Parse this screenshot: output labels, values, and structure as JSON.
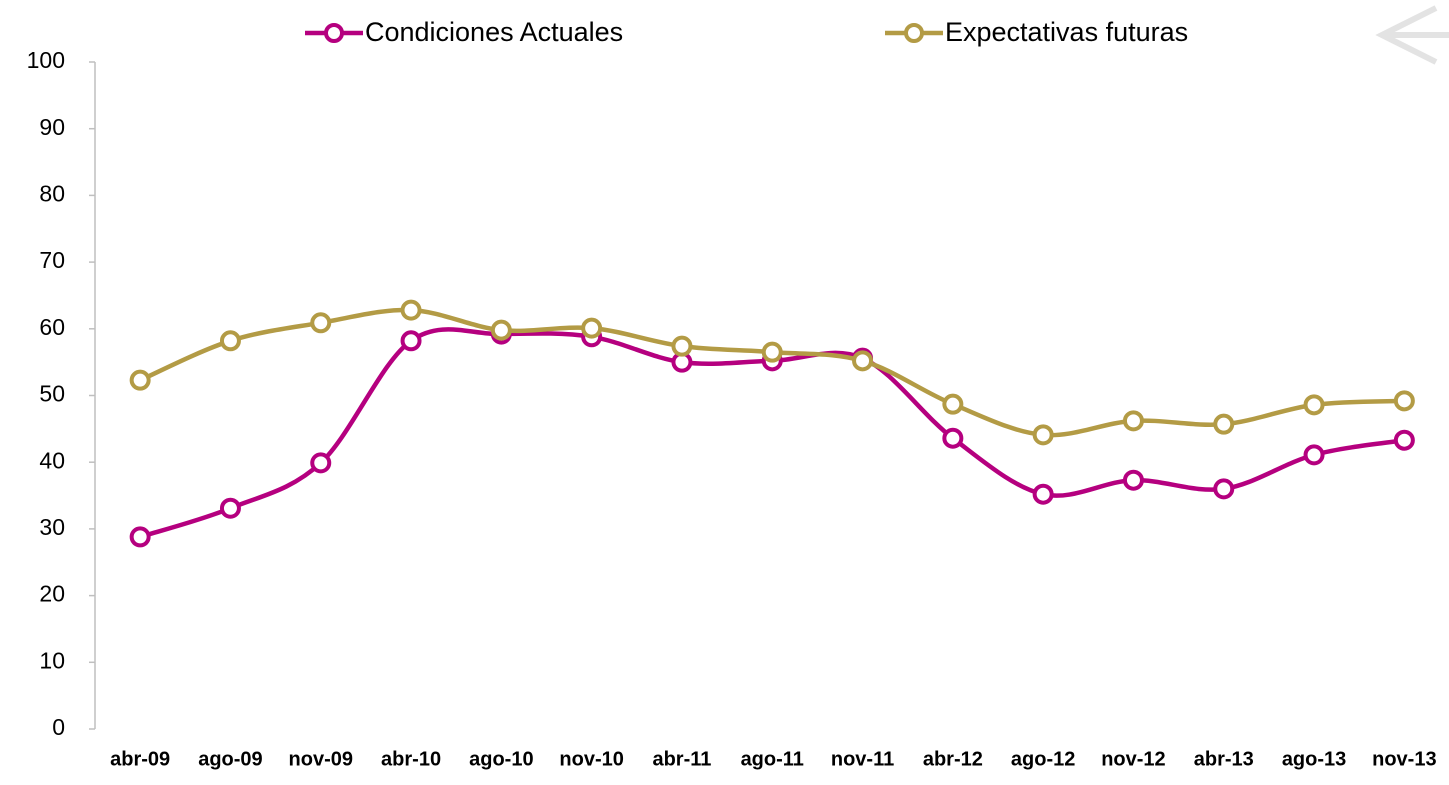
{
  "chart_data": {
    "type": "line",
    "categories": [
      "abr-09",
      "ago-09",
      "nov-09",
      "abr-10",
      "ago-10",
      "nov-10",
      "abr-11",
      "ago-11",
      "nov-11",
      "abr-12",
      "ago-12",
      "nov-12",
      "abr-13",
      "ago-13",
      "nov-13"
    ],
    "series": [
      {
        "name": "Condiciones Actuales",
        "color": "#b5007f",
        "values": [
          28.8,
          33.1,
          39.9,
          58.2,
          59.2,
          58.8,
          55.0,
          55.2,
          55.6,
          43.6,
          35.2,
          37.3,
          36.0,
          41.1,
          43.3
        ]
      },
      {
        "name": "Expectativas futuras",
        "color": "#b39b45",
        "values": [
          52.3,
          58.2,
          60.9,
          62.8,
          59.8,
          60.1,
          57.4,
          56.5,
          55.2,
          48.7,
          44.1,
          46.2,
          45.7,
          48.6,
          49.2
        ]
      }
    ],
    "ylim": [
      0,
      100
    ],
    "yticks": [
      0,
      10,
      20,
      30,
      40,
      50,
      60,
      70,
      80,
      90,
      100
    ],
    "smooth": true,
    "legend": "top",
    "grid": false
  }
}
